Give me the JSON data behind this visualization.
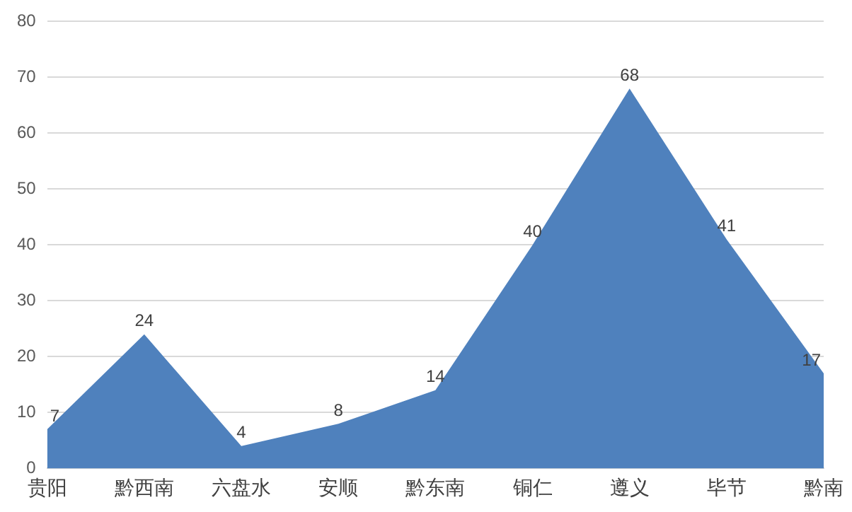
{
  "chart_data": {
    "type": "area",
    "categories": [
      "贵阳",
      "黔西南",
      "六盘水",
      "安顺",
      "黔东南",
      "铜仁",
      "遵义",
      "毕节",
      "黔南"
    ],
    "series": [
      {
        "color": "#4f81bd",
        "values": [
          7,
          24,
          4,
          8,
          14,
          40,
          68,
          41,
          17
        ]
      }
    ],
    "ylim": [
      0,
      80
    ],
    "yticks": [
      0,
      10,
      20,
      30,
      40,
      50,
      60,
      70,
      80
    ],
    "grid": "y",
    "legend": false,
    "data_labels": true
  }
}
